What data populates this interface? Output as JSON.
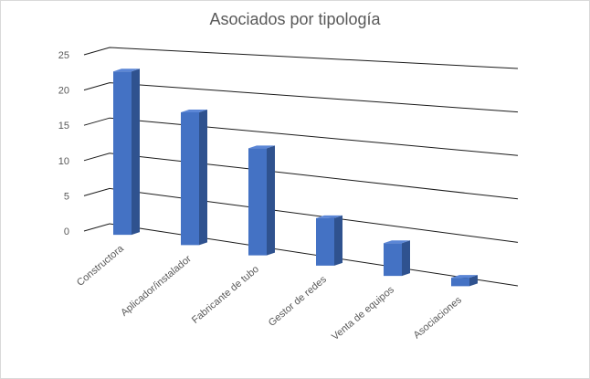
{
  "chart_data": {
    "type": "bar3d",
    "title": "Asociados por tipología",
    "categories": [
      "Constructora",
      "Aplicador/instalador",
      "Fabricante de tubo",
      "Gestor de redes",
      "Venta de equipos",
      "Asociaciones"
    ],
    "values": [
      23,
      18,
      14,
      6,
      4,
      1
    ],
    "color": "#4472c4",
    "ylim": [
      0,
      25
    ],
    "yticks": [
      0,
      5,
      10,
      15,
      20,
      25
    ],
    "grid": true
  }
}
